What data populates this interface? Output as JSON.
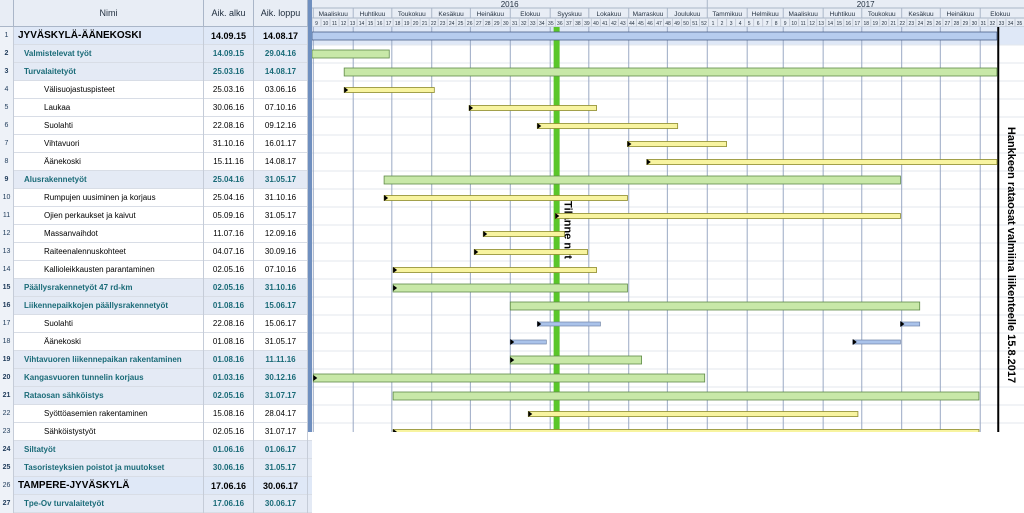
{
  "columns": {
    "num": "",
    "name": "Nimi",
    "start": "Aik. alku",
    "end": "Aik. loppu"
  },
  "years": [
    "2016",
    "2017"
  ],
  "months": [
    "Maaliskuu",
    "Huhtikuu",
    "Toukokuu",
    "Kesäkuu",
    "Heinäkuu",
    "Elokuu",
    "Syyskuu",
    "Lokakuu",
    "Marraskuu",
    "Joulukuu",
    "Tammikuu",
    "Helmikuu",
    "Maaliskuu",
    "Huhtikuu",
    "Toukokuu",
    "Kesäkuu",
    "Heinäkuu",
    "Elokuu"
  ],
  "weeks": [
    "9",
    "10",
    "11",
    "12",
    "13",
    "14",
    "15",
    "16",
    "17",
    "18",
    "19",
    "20",
    "21",
    "22",
    "23",
    "24",
    "25",
    "26",
    "27",
    "28",
    "29",
    "30",
    "31",
    "32",
    "33",
    "34",
    "35",
    "36",
    "37",
    "38",
    "39",
    "40",
    "41",
    "42",
    "43",
    "44",
    "45",
    "46",
    "47",
    "48",
    "49",
    "50",
    "51",
    "52",
    "1",
    "2",
    "3",
    "4",
    "5",
    "6",
    "7",
    "8",
    "9",
    "10",
    "11",
    "12",
    "13",
    "14",
    "15",
    "16",
    "17",
    "18",
    "19",
    "20",
    "21",
    "22",
    "23",
    "24",
    "25",
    "26",
    "27",
    "28",
    "29",
    "30",
    "31",
    "32",
    "33",
    "34",
    "35"
  ],
  "timeline": {
    "start": "2016-02-29",
    "end": "2017-09-04"
  },
  "today": "2016-09-06",
  "today_label": "Tilanne nyt",
  "milestone": "2017-08-15",
  "milestone_label": "Hankkeen rataosat valmiina liikenteelle 15.8.2017",
  "colors": {
    "summary": "#b6ccee",
    "green": "#c8e8a8",
    "yellow": "#f8f4a0",
    "blue": "#aac3ea",
    "today": "#5ac62a"
  },
  "rows": [
    {
      "num": "1",
      "name": "JYVÄSKYLÄ-ÄÄNEKOSKI",
      "start": "14.09.15",
      "end": "14.08.17",
      "level": 0,
      "kind": "top",
      "bar": {
        "type": "summary",
        "from": "2016-02-29",
        "to": "2017-08-14"
      }
    },
    {
      "num": "2",
      "name": "Valmistelevat työt",
      "start": "14.09.15",
      "end": "29.04.16",
      "level": 1,
      "kind": "group",
      "bar": {
        "type": "green",
        "from": "2016-02-29",
        "to": "2016-04-29"
      }
    },
    {
      "num": "3",
      "name": "Turvalaitetyöt",
      "start": "25.03.16",
      "end": "14.08.17",
      "level": 1,
      "kind": "group",
      "bar": {
        "type": "green",
        "from": "2016-03-25",
        "to": "2017-08-14"
      }
    },
    {
      "num": "4",
      "name": "Välisuojastuspisteet",
      "start": "25.03.16",
      "end": "03.06.16",
      "level": 2,
      "kind": "task",
      "bar": {
        "type": "yellow",
        "from": "2016-03-25",
        "to": "2016-06-03",
        "arrow": true
      }
    },
    {
      "num": "5",
      "name": "Laukaa",
      "start": "30.06.16",
      "end": "07.10.16",
      "level": 2,
      "kind": "task",
      "bar": {
        "type": "yellow",
        "from": "2016-06-30",
        "to": "2016-10-07",
        "arrow": true
      }
    },
    {
      "num": "6",
      "name": "Suolahti",
      "start": "22.08.16",
      "end": "09.12.16",
      "level": 2,
      "kind": "task",
      "bar": {
        "type": "yellow",
        "from": "2016-08-22",
        "to": "2016-12-09",
        "arrow": true
      }
    },
    {
      "num": "7",
      "name": "Vihtavuori",
      "start": "31.10.16",
      "end": "16.01.17",
      "level": 2,
      "kind": "task",
      "bar": {
        "type": "yellow",
        "from": "2016-10-31",
        "to": "2017-01-16",
        "arrow": true
      }
    },
    {
      "num": "8",
      "name": "Äänekoski",
      "start": "15.11.16",
      "end": "14.08.17",
      "level": 2,
      "kind": "task",
      "bar": {
        "type": "yellow",
        "from": "2016-11-15",
        "to": "2017-08-14",
        "arrow": true
      }
    },
    {
      "num": "9",
      "name": "Alusrakennetyöt",
      "start": "25.04.16",
      "end": "31.05.17",
      "level": 1,
      "kind": "group",
      "bar": {
        "type": "green",
        "from": "2016-04-25",
        "to": "2017-05-31"
      }
    },
    {
      "num": "10",
      "name": "Rumpujen uusiminen ja korjaus",
      "start": "25.04.16",
      "end": "31.10.16",
      "level": 2,
      "kind": "task",
      "bar": {
        "type": "yellow",
        "from": "2016-04-25",
        "to": "2016-10-31",
        "arrow": true
      }
    },
    {
      "num": "11",
      "name": "Ojien perkaukset ja kaivut",
      "start": "05.09.16",
      "end": "31.05.17",
      "level": 2,
      "kind": "task",
      "bar": {
        "type": "yellow",
        "from": "2016-09-05",
        "to": "2017-05-31",
        "arrow": true
      }
    },
    {
      "num": "12",
      "name": "Massanvaihdot",
      "start": "11.07.16",
      "end": "12.09.16",
      "level": 2,
      "kind": "task",
      "bar": {
        "type": "yellow",
        "from": "2016-07-11",
        "to": "2016-09-12",
        "arrow": true
      }
    },
    {
      "num": "13",
      "name": "Raiteenalennuskohteet",
      "start": "04.07.16",
      "end": "30.09.16",
      "level": 2,
      "kind": "task",
      "bar": {
        "type": "yellow",
        "from": "2016-07-04",
        "to": "2016-09-30",
        "arrow": true
      }
    },
    {
      "num": "14",
      "name": "Kallioleikkausten parantaminen",
      "start": "02.05.16",
      "end": "07.10.16",
      "level": 2,
      "kind": "task",
      "bar": {
        "type": "yellow",
        "from": "2016-05-02",
        "to": "2016-10-07",
        "arrow": true
      }
    },
    {
      "num": "15",
      "name": "Päällysrakennetyöt 47 rd-km",
      "start": "02.05.16",
      "end": "31.10.16",
      "level": 1,
      "kind": "group",
      "bar": {
        "type": "green",
        "from": "2016-05-02",
        "to": "2016-10-31",
        "arrow": true
      }
    },
    {
      "num": "16",
      "name": "Liikennepaikkojen päällysrakennetyöt",
      "start": "01.08.16",
      "end": "15.06.17",
      "level": 1,
      "kind": "group",
      "bar": {
        "type": "green",
        "from": "2016-08-01",
        "to": "2017-06-15"
      }
    },
    {
      "num": "17",
      "name": "Suolahti",
      "start": "22.08.16",
      "end": "15.06.17",
      "level": 2,
      "kind": "task",
      "bar": {
        "type": "split",
        "parts": [
          [
            "2016-08-22",
            "2016-10-10"
          ],
          [
            "2017-05-31",
            "2017-06-15"
          ]
        ]
      }
    },
    {
      "num": "18",
      "name": "Äänekoski",
      "start": "01.08.16",
      "end": "31.05.17",
      "level": 2,
      "kind": "task",
      "bar": {
        "type": "split",
        "parts": [
          [
            "2016-08-01",
            "2016-08-29"
          ],
          [
            "2017-04-24",
            "2017-05-31"
          ]
        ]
      }
    },
    {
      "num": "19",
      "name": "Vihtavuoren liikennepaikan rakentaminen",
      "start": "01.08.16",
      "end": "11.11.16",
      "level": 1,
      "kind": "group",
      "bar": {
        "type": "green",
        "from": "2016-08-01",
        "to": "2016-11-11",
        "arrow": true
      }
    },
    {
      "num": "20",
      "name": "Kangasvuoren tunnelin korjaus",
      "start": "01.03.16",
      "end": "30.12.16",
      "level": 1,
      "kind": "group",
      "bar": {
        "type": "green",
        "from": "2016-03-01",
        "to": "2016-12-30",
        "arrow": true
      }
    },
    {
      "num": "21",
      "name": "Rataosan sähköistys",
      "start": "02.05.16",
      "end": "31.07.17",
      "level": 1,
      "kind": "group",
      "bar": {
        "type": "green",
        "from": "2016-05-02",
        "to": "2017-07-31"
      }
    },
    {
      "num": "22",
      "name": "Syöttöasemien rakentaminen",
      "start": "15.08.16",
      "end": "28.04.17",
      "level": 2,
      "kind": "task",
      "bar": {
        "type": "yellow",
        "from": "2016-08-15",
        "to": "2017-04-28",
        "arrow": true
      }
    },
    {
      "num": "23",
      "name": "Sähköistystyöt",
      "start": "02.05.16",
      "end": "31.07.17",
      "level": 2,
      "kind": "task",
      "bar": {
        "type": "yellow",
        "from": "2016-05-02",
        "to": "2017-07-31",
        "arrow": true
      }
    },
    {
      "num": "24",
      "name": "Siltatyöt",
      "start": "01.06.16",
      "end": "01.06.17",
      "level": 1,
      "kind": "group",
      "bar": {
        "type": "green",
        "from": "2016-06-01",
        "to": "2017-06-01",
        "arrow": true
      }
    },
    {
      "num": "25",
      "name": "Tasoristeyksien poistot ja muutokset",
      "start": "30.06.16",
      "end": "31.05.17",
      "level": 1,
      "kind": "group",
      "bar": {
        "type": "green",
        "from": "2016-06-30",
        "to": "2017-05-31",
        "arrow": true
      }
    },
    {
      "num": "26",
      "name": "TAMPERE-JYVÄSKYLÄ",
      "start": "17.06.16",
      "end": "30.06.17",
      "level": 0,
      "kind": "top",
      "bar": {
        "type": "summary",
        "from": "2016-06-17",
        "to": "2017-06-30"
      }
    },
    {
      "num": "27",
      "name": "Tpe-Ov turvalaitetyöt",
      "start": "17.06.16",
      "end": "30.06.17",
      "level": 1,
      "kind": "group",
      "bar": {
        "type": "green",
        "from": "2016-06-17",
        "to": "2017-06-30"
      }
    }
  ]
}
